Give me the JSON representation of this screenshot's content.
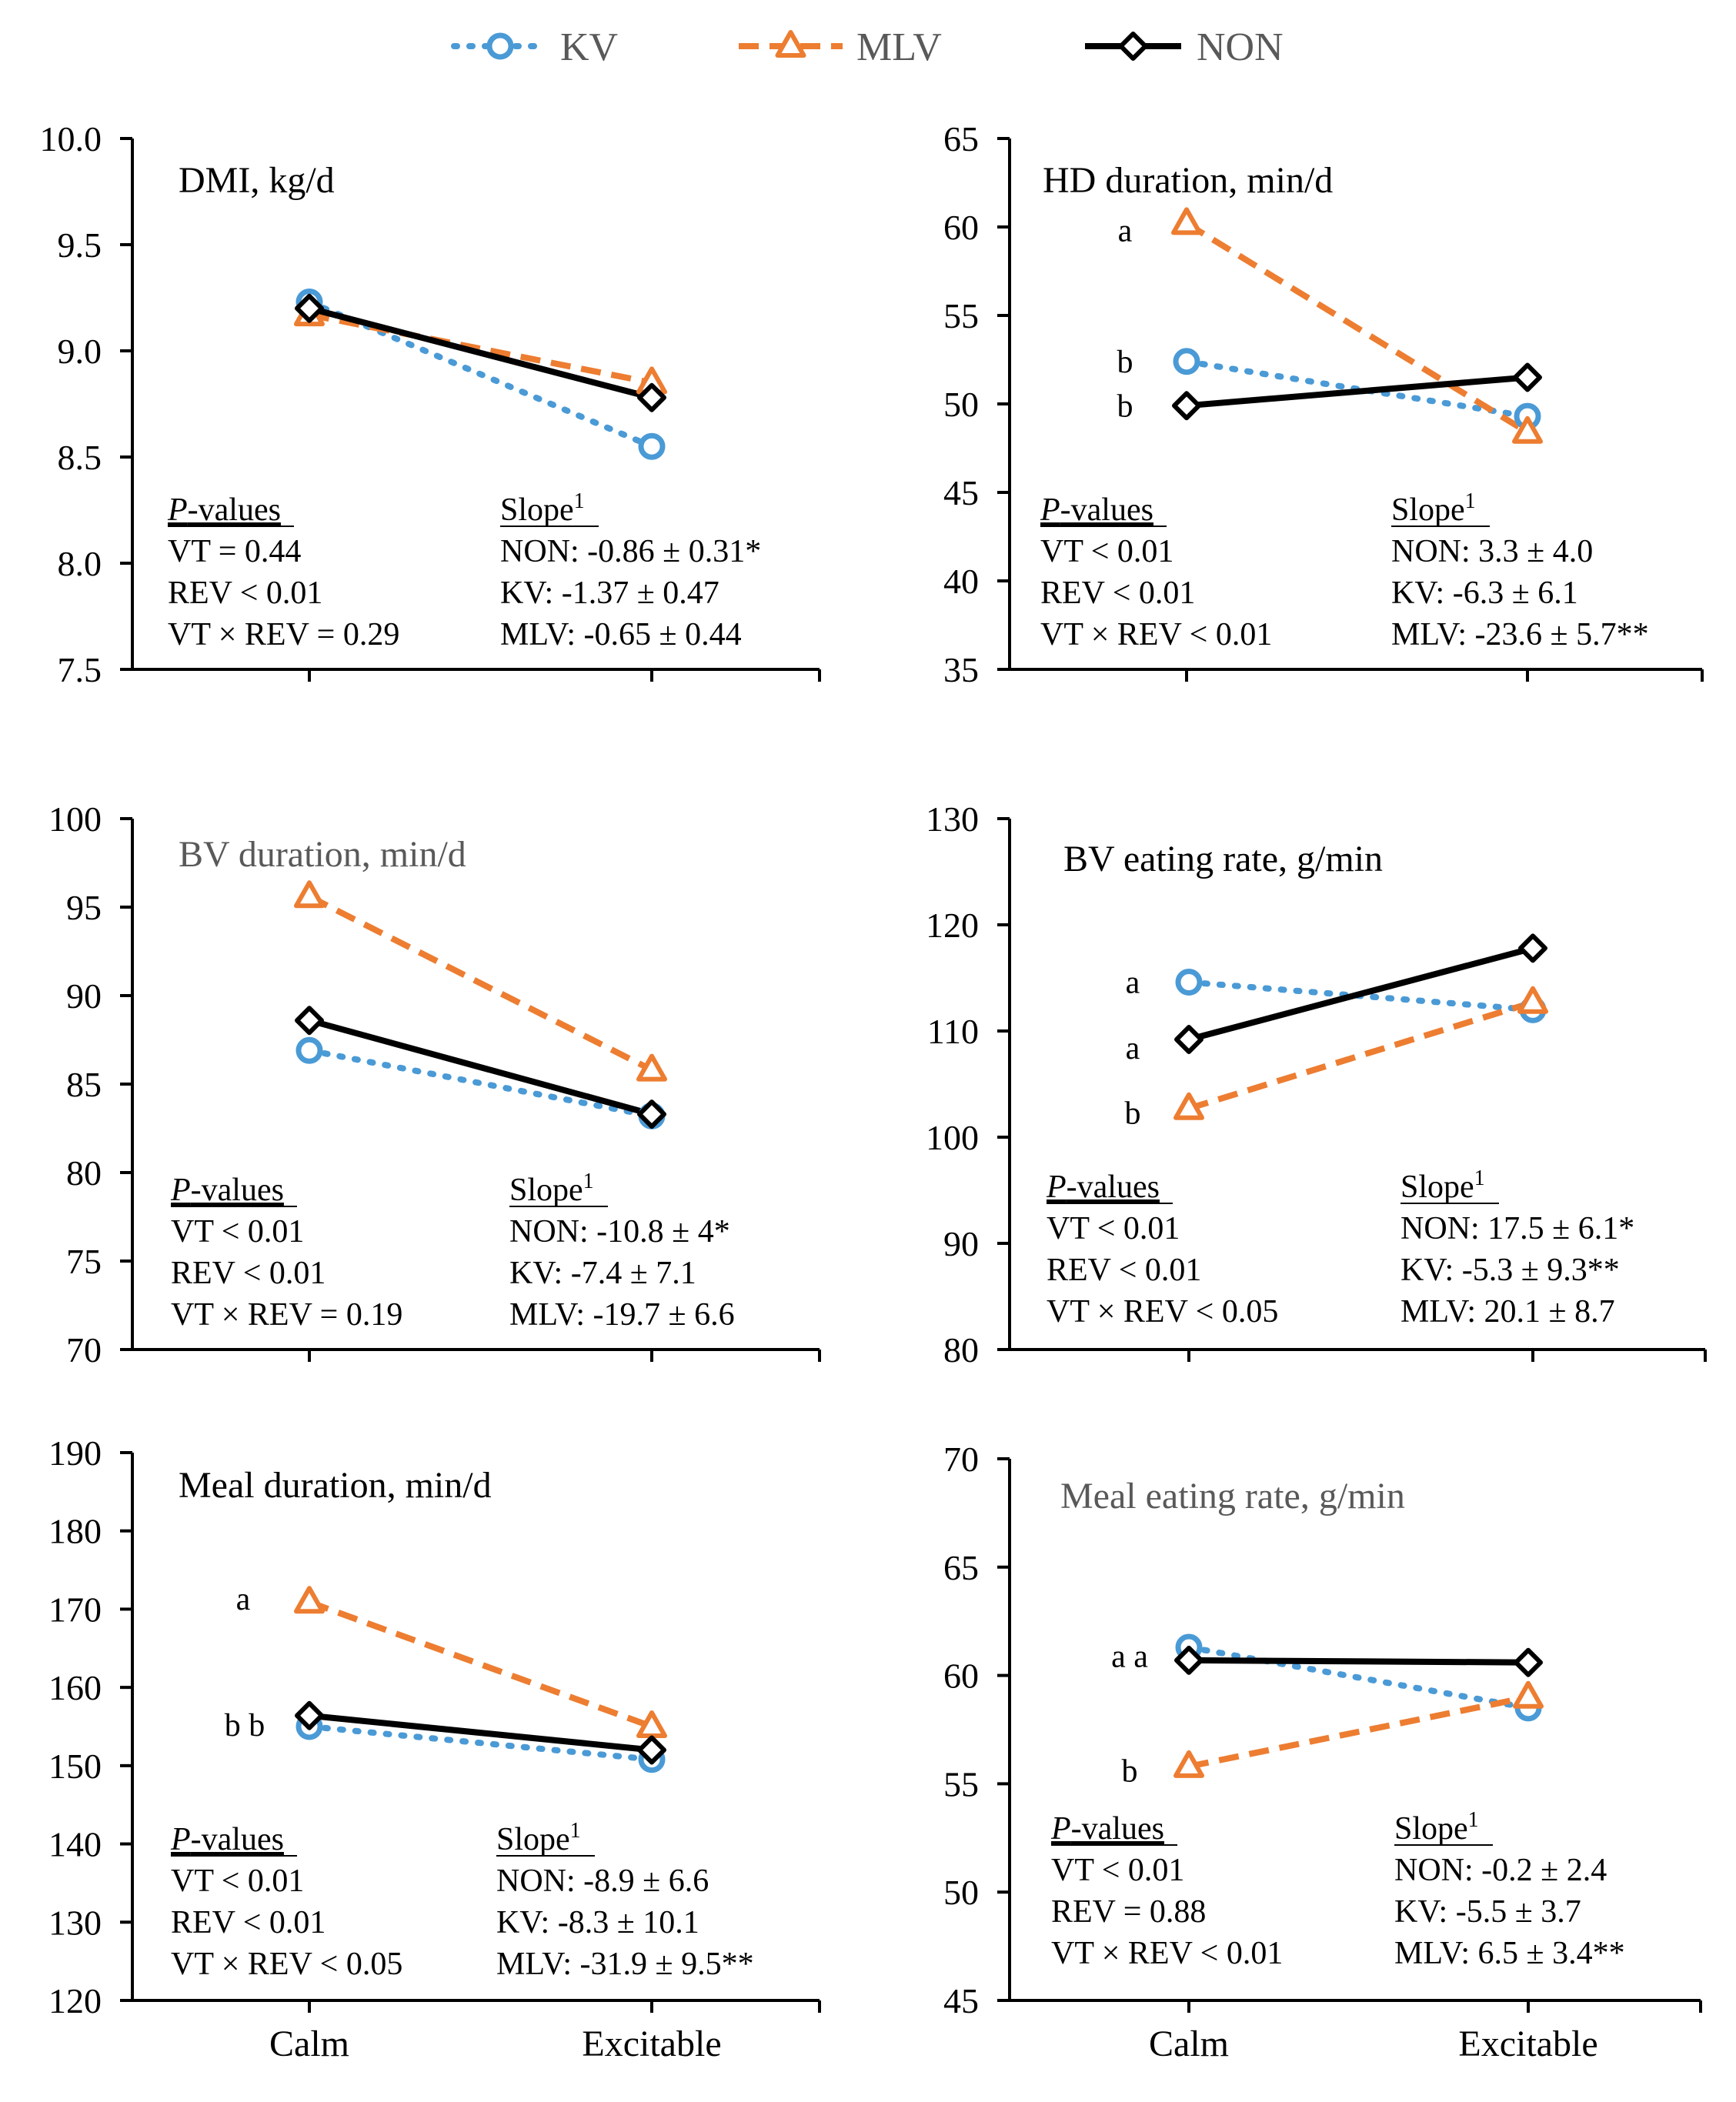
{
  "legend": [
    {
      "key": "KV",
      "label": "KV",
      "color": "#4a9ad6",
      "marker": "circle",
      "dash": "dotted"
    },
    {
      "key": "MLV",
      "label": "MLV",
      "color": "#ed7d31",
      "marker": "triangle",
      "dash": "dashed"
    },
    {
      "key": "NON",
      "label": "NON",
      "color": "#000000",
      "marker": "diamond",
      "dash": "solid"
    }
  ],
  "chart_data": [
    {
      "type": "line",
      "title": "DMI, kg/d",
      "title_color": "#000000",
      "categories": [
        "Calm",
        "Excitable"
      ],
      "ylim": [
        7.5,
        10.0
      ],
      "yticks": [
        "7.5",
        "8.0",
        "8.5",
        "9.0",
        "9.5",
        "10.0"
      ],
      "series": [
        {
          "name": "KV",
          "values": [
            9.23,
            8.55
          ]
        },
        {
          "name": "MLV",
          "values": [
            9.17,
            8.85
          ]
        },
        {
          "name": "NON",
          "values": [
            9.2,
            8.78
          ]
        }
      ],
      "letters": [],
      "p_values": {
        "header": "-values",
        "header_prefix": "P",
        "lines": [
          "VT = 0.44",
          "REV < 0.01",
          "VT × REV = 0.29"
        ]
      },
      "slope": {
        "header": "Slope",
        "sup": "1",
        "lines": [
          "NON: -0.86 ± 0.31*",
          "KV: -1.37 ± 0.47",
          "MLV: -0.65 ± 0.44"
        ]
      }
    },
    {
      "type": "line",
      "title": "HD duration, min/d",
      "title_color": "#000000",
      "categories": [
        "Calm",
        "Excitable"
      ],
      "ylim": [
        35,
        65
      ],
      "yticks": [
        "35",
        "40",
        "45",
        "50",
        "55",
        "60",
        "65"
      ],
      "series": [
        {
          "name": "KV",
          "values": [
            52.4,
            49.3
          ]
        },
        {
          "name": "MLV",
          "values": [
            60.2,
            48.4
          ]
        },
        {
          "name": "NON",
          "values": [
            49.9,
            51.5
          ]
        }
      ],
      "letters": [
        {
          "text": "a",
          "value": 59.8
        },
        {
          "text": "b",
          "value": 52.4
        },
        {
          "text": "b",
          "value": 49.9
        }
      ],
      "p_values": {
        "header": "-values",
        "header_prefix": "P",
        "lines": [
          "VT < 0.01",
          "REV < 0.01",
          "VT × REV < 0.01"
        ]
      },
      "slope": {
        "header": "Slope",
        "sup": "1",
        "lines": [
          "NON: 3.3 ± 4.0",
          "KV: -6.3 ± 6.1",
          "MLV: -23.6 ± 5.7**"
        ]
      }
    },
    {
      "type": "line",
      "title": "BV duration, min/d",
      "title_color": "#595959",
      "categories": [
        "Calm",
        "Excitable"
      ],
      "ylim": [
        70,
        100
      ],
      "yticks": [
        "70",
        "75",
        "80",
        "85",
        "90",
        "95",
        "100"
      ],
      "series": [
        {
          "name": "KV",
          "values": [
            86.9,
            83.2
          ]
        },
        {
          "name": "MLV",
          "values": [
            95.6,
            85.8
          ]
        },
        {
          "name": "NON",
          "values": [
            88.6,
            83.3
          ]
        }
      ],
      "letters": [],
      "p_values": {
        "header": "-values",
        "header_prefix": "P",
        "lines": [
          "VT < 0.01",
          "REV < 0.01",
          "VT × REV = 0.19"
        ]
      },
      "slope": {
        "header": "Slope",
        "sup": "1",
        "lines": [
          "NON: -10.8 ± 4*",
          "KV: -7.4 ± 7.1",
          "MLV: -19.7 ± 6.6"
        ]
      }
    },
    {
      "type": "line",
      "title": "BV eating rate, g/min",
      "title_color": "#000000",
      "categories": [
        "Calm",
        "Excitable"
      ],
      "ylim": [
        80,
        130
      ],
      "yticks": [
        "80",
        "90",
        "100",
        "110",
        "120",
        "130"
      ],
      "series": [
        {
          "name": "KV",
          "values": [
            114.6,
            112.0
          ]
        },
        {
          "name": "MLV",
          "values": [
            102.7,
            112.7
          ]
        },
        {
          "name": "NON",
          "values": [
            109.2,
            117.8
          ]
        }
      ],
      "letters": [
        {
          "text": "a",
          "value": 114.6
        },
        {
          "text": "a",
          "value": 108.4
        },
        {
          "text": "b",
          "value": 102.3
        }
      ],
      "p_values": {
        "header": "-values",
        "header_prefix": "P",
        "lines": [
          "VT < 0.01",
          "REV < 0.01",
          "VT × REV < 0.05"
        ]
      },
      "slope": {
        "header": "Slope",
        "sup": "1",
        "lines": [
          "NON: 17.5 ± 6.1*",
          "KV: -5.3 ± 9.3**",
          "MLV: 20.1 ± 8.7"
        ]
      }
    },
    {
      "type": "line",
      "title": "Meal duration, min/d",
      "title_color": "#000000",
      "categories": [
        "Calm",
        "Excitable"
      ],
      "ylim": [
        120,
        190
      ],
      "yticks": [
        "120",
        "130",
        "140",
        "150",
        "160",
        "170",
        "180",
        "190"
      ],
      "series": [
        {
          "name": "KV",
          "values": [
            155.0,
            150.8
          ]
        },
        {
          "name": "MLV",
          "values": [
            170.9,
            155.0
          ]
        },
        {
          "name": "NON",
          "values": [
            156.4,
            152.0
          ]
        }
      ],
      "letters": [
        {
          "text": "a",
          "value": 171.3
        },
        {
          "text": "b b",
          "value": 155.2
        }
      ],
      "p_values": {
        "header": "-values",
        "header_prefix": "P",
        "lines": [
          "VT < 0.01",
          "REV < 0.01",
          "VT × REV < 0.05"
        ]
      },
      "slope": {
        "header": "Slope",
        "sup": "1",
        "lines": [
          "NON: -8.9 ± 6.6",
          "KV: -8.3 ± 10.1",
          "MLV: -31.9 ± 9.5**"
        ]
      }
    },
    {
      "type": "line",
      "title": "Meal eating rate, g/min",
      "title_color": "#595959",
      "categories": [
        "Calm",
        "Excitable"
      ],
      "ylim": [
        45,
        70
      ],
      "yticks": [
        "45",
        "50",
        "55",
        "60",
        "65",
        "70"
      ],
      "series": [
        {
          "name": "KV",
          "values": [
            61.3,
            58.5
          ]
        },
        {
          "name": "MLV",
          "values": [
            55.8,
            59.0
          ]
        },
        {
          "name": "NON",
          "values": [
            60.7,
            60.6
          ]
        }
      ],
      "letters": [
        {
          "text": "a a",
          "value": 60.9
        },
        {
          "text": "b",
          "value": 55.6
        }
      ],
      "p_values": {
        "header": "-values",
        "header_prefix": "P",
        "lines": [
          "VT < 0.01",
          "REV = 0.88",
          "VT × REV < 0.01"
        ]
      },
      "slope": {
        "header": "Slope",
        "sup": "1",
        "lines": [
          "NON: -0.2 ± 2.4",
          "KV: -5.5 ± 3.7",
          "MLV: 6.5 ± 3.4**"
        ]
      }
    }
  ]
}
